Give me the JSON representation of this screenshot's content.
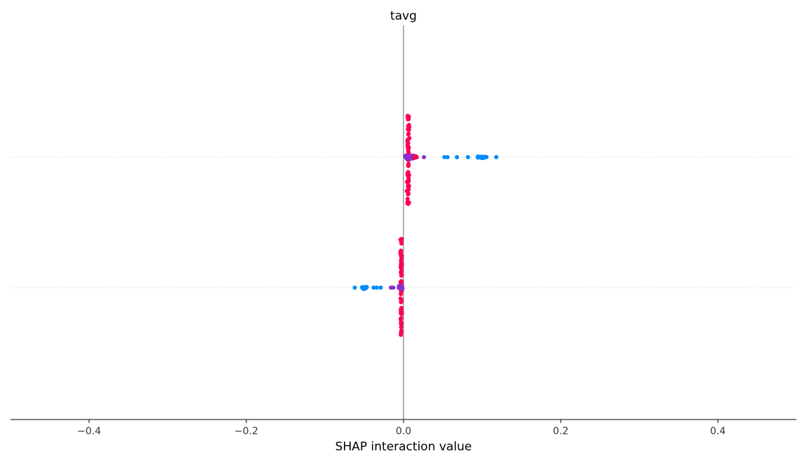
{
  "chart_data": {
    "type": "scatter",
    "title": "tavg",
    "xlabel": "SHAP interaction value",
    "ylabel": "",
    "xlim": [
      -0.5,
      0.5
    ],
    "x_ticks": [
      -0.4,
      -0.2,
      0.0,
      0.2,
      0.4
    ],
    "x_tick_labels": [
      "−0.4",
      "−0.2",
      "0.0",
      "0.2",
      "0.4"
    ],
    "grid": false,
    "legend": "none",
    "colors": {
      "low": "#008bfb",
      "mid": "#8a2fd0",
      "high": "#ff0052",
      "zero_line": "#999999",
      "row_line": "#cccccc",
      "axis": "#000000"
    },
    "rows": [
      {
        "row": 1,
        "description_hidden": "",
        "clusters": [
          {
            "x_center": 0.006,
            "x_spread": 0.003,
            "y_spread": 0.6,
            "count": 70,
            "color": "high"
          },
          {
            "x_center": 0.008,
            "x_spread": 0.012,
            "y_spread": 0.08,
            "count": 40,
            "color": "mid"
          },
          {
            "x_center": 0.015,
            "x_spread": 0.004,
            "y_spread": 0.05,
            "count": 10,
            "color": "high"
          },
          {
            "x_center": 0.1,
            "x_spread": 0.01,
            "y_spread": 0.04,
            "count": 30,
            "color": "low"
          }
        ],
        "outliers": [
          {
            "x": 0.052,
            "color": "low"
          },
          {
            "x": 0.056,
            "color": "low"
          },
          {
            "x": 0.068,
            "color": "low"
          },
          {
            "x": 0.082,
            "color": "low"
          },
          {
            "x": 0.118,
            "color": "low"
          },
          {
            "x": 0.026,
            "color": "mid"
          }
        ]
      },
      {
        "row": 2,
        "description_hidden": "",
        "clusters": [
          {
            "x_center": -0.003,
            "x_spread": 0.002,
            "y_spread": 0.6,
            "count": 70,
            "color": "high"
          },
          {
            "x_center": -0.004,
            "x_spread": 0.006,
            "y_spread": 0.08,
            "count": 30,
            "color": "mid"
          },
          {
            "x_center": -0.05,
            "x_spread": 0.006,
            "y_spread": 0.05,
            "count": 25,
            "color": "low"
          }
        ],
        "outliers": [
          {
            "x": -0.034,
            "color": "low"
          },
          {
            "x": -0.038,
            "color": "low"
          },
          {
            "x": -0.029,
            "color": "low"
          },
          {
            "x": -0.062,
            "color": "low"
          },
          {
            "x": -0.013,
            "color": "mid"
          },
          {
            "x": -0.016,
            "color": "mid"
          }
        ]
      }
    ]
  }
}
